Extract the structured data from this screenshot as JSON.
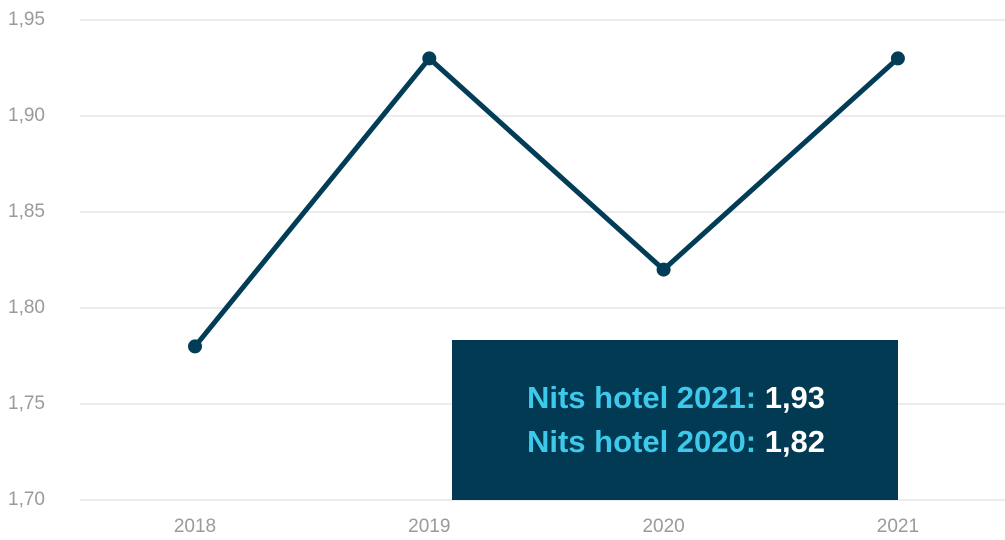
{
  "chart_data": {
    "type": "line",
    "categories": [
      "2018",
      "2019",
      "2020",
      "2021"
    ],
    "values": [
      1.78,
      1.93,
      1.82,
      1.93
    ],
    "color": "#023d57",
    "ylim": [
      1.7,
      1.95
    ],
    "yticks": [
      {
        "value": 1.7,
        "label": "1,70"
      },
      {
        "value": 1.75,
        "label": "1,75"
      },
      {
        "value": 1.8,
        "label": "1,80"
      },
      {
        "value": 1.85,
        "label": "1,85"
      },
      {
        "value": 1.9,
        "label": "1,90"
      },
      {
        "value": 1.95,
        "label": "1,95"
      }
    ],
    "grid": true,
    "annotation": {
      "lines": [
        {
          "name": "Nits hotel 2021:",
          "value": "1,93"
        },
        {
          "name": "Nits hotel 2020:",
          "value": "1,82"
        }
      ]
    }
  }
}
